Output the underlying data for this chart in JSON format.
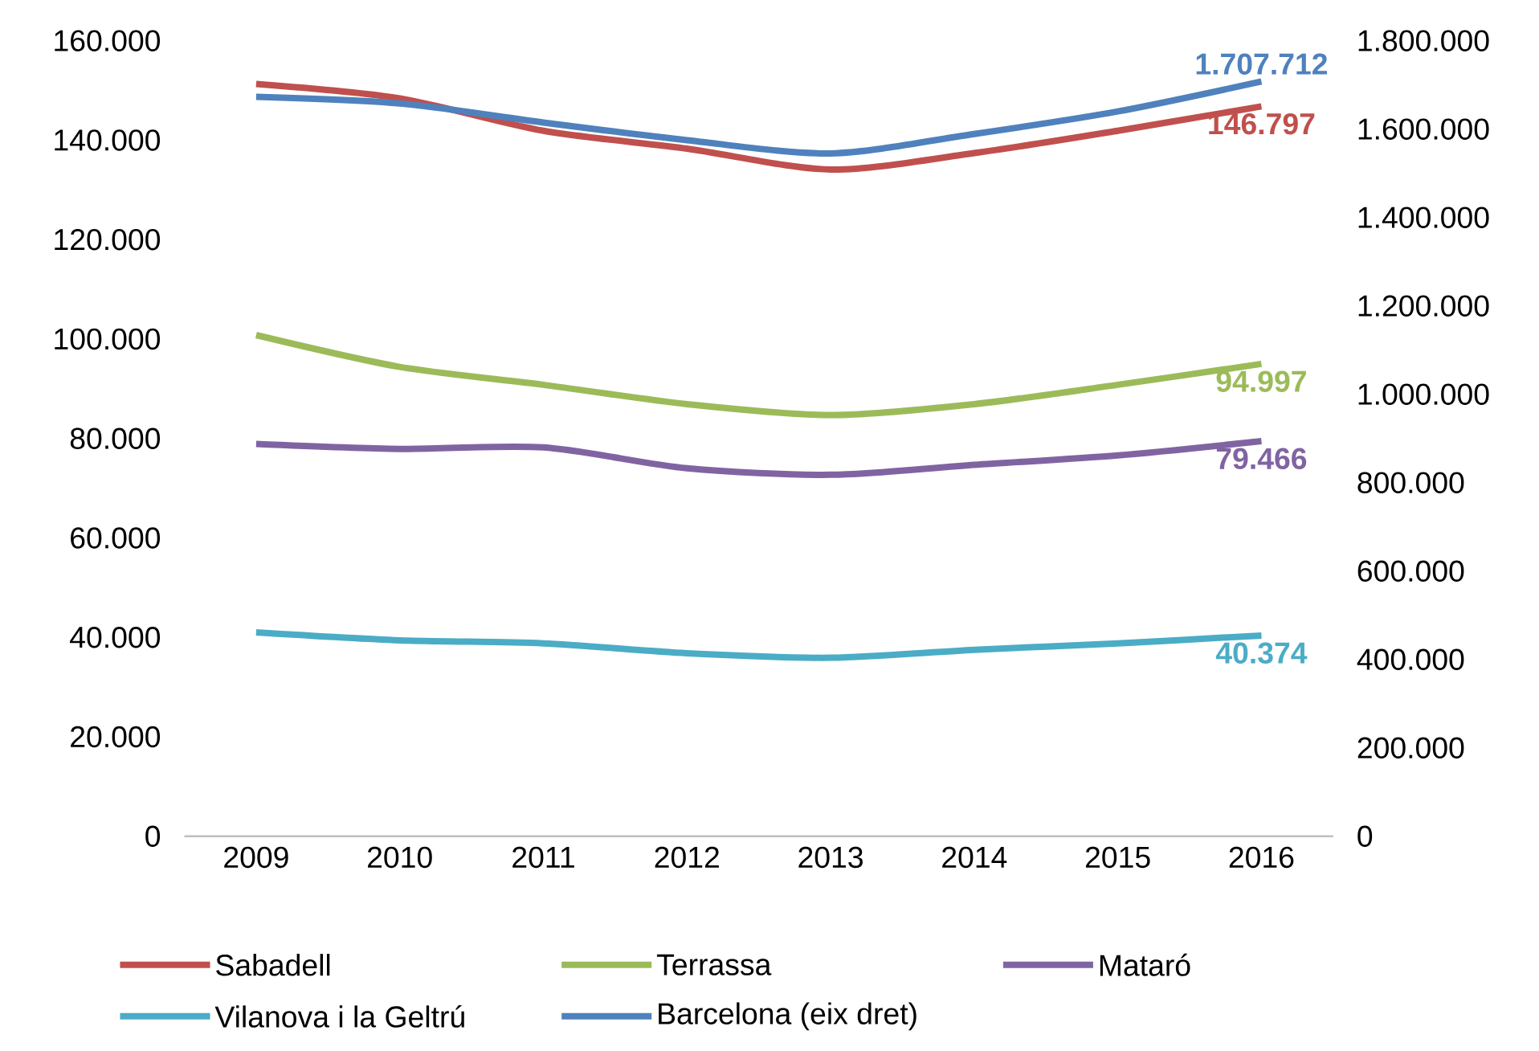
{
  "chart_data": {
    "type": "line",
    "categories": [
      "2009",
      "2010",
      "2011",
      "2012",
      "2013",
      "2014",
      "2015",
      "2016"
    ],
    "series": [
      {
        "name": "Sabadell",
        "color": "#c0504d",
        "values": [
          151300,
          148400,
          141900,
          138300,
          134100,
          137400,
          141900,
          146797
        ],
        "value_labels": [
          null,
          null,
          null,
          null,
          null,
          null,
          null,
          "146.797"
        ]
      },
      {
        "name": "Terrassa",
        "color": "#9bbb59",
        "values": [
          100800,
          94400,
          90800,
          86900,
          84700,
          86900,
          90800,
          94997
        ],
        "value_labels": [
          null,
          null,
          null,
          null,
          null,
          null,
          null,
          "94.997"
        ]
      },
      {
        "name": "Mataró",
        "color": "#8064a2",
        "values": [
          78900,
          77900,
          78200,
          74000,
          72700,
          74700,
          76600,
          79466
        ],
        "value_labels": [
          null,
          null,
          null,
          null,
          null,
          null,
          null,
          "79.466"
        ]
      },
      {
        "name": "Vilanova i la Geltrú",
        "color": "#4bacc6",
        "values": [
          41000,
          39400,
          38800,
          36800,
          35900,
          37500,
          38800,
          40374
        ],
        "value_labels": [
          null,
          null,
          null,
          null,
          null,
          null,
          null,
          "40.374"
        ]
      },
      {
        "name": "Barcelona (eix dret)",
        "color": "#4f81bd",
        "axis": "y2",
        "values": [
          1673000,
          1658000,
          1615000,
          1575000,
          1545000,
          1589000,
          1640000,
          1707712
        ],
        "value_labels": [
          null,
          null,
          null,
          null,
          null,
          null,
          null,
          "1.707.712"
        ]
      }
    ],
    "ylim": [
      0,
      160000
    ],
    "yticks": [
      0,
      {
        "value": 20000,
        "label": "20.000"
      },
      {
        "value": 40000,
        "label": "40.000"
      },
      {
        "value": 60000,
        "label": "60.000"
      },
      {
        "value": 80000,
        "label": "80.000"
      },
      {
        "value": 100000,
        "label": "100.000"
      },
      {
        "value": 120000,
        "label": "120.000"
      },
      {
        "value": 140000,
        "label": "140.000"
      },
      {
        "value": 160000,
        "label": "160.000"
      }
    ],
    "y2lim": [
      0,
      1800000
    ],
    "y2ticks": [
      0,
      {
        "value": 200000,
        "label": "200.000"
      },
      {
        "value": 400000,
        "label": "400.000"
      },
      {
        "value": 600000,
        "label": "600.000"
      },
      {
        "value": 800000,
        "label": "800.000"
      },
      {
        "value": 1000000,
        "label": "1.000.000"
      },
      {
        "value": 1200000,
        "label": "1.200.000"
      },
      {
        "value": 1400000,
        "label": "1.400.000"
      },
      {
        "value": 1600000,
        "label": "1.600.000"
      },
      {
        "value": 1800000,
        "label": "1.800.000"
      }
    ],
    "legend": "bottom"
  }
}
